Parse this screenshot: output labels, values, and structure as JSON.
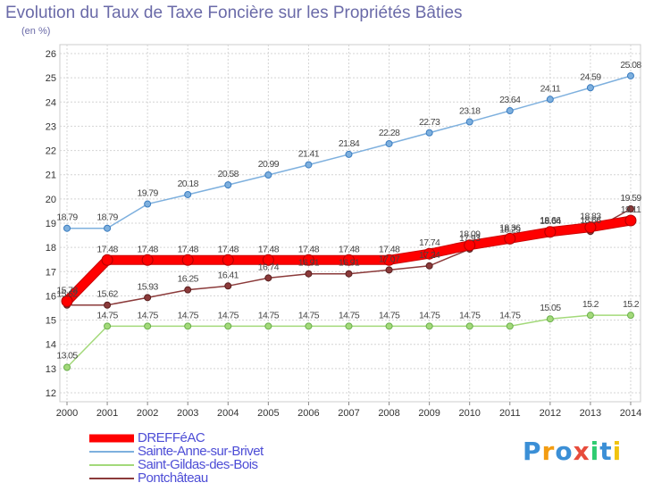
{
  "title": "Evolution du Taux de Taxe Foncière sur les Propriétés Bâties",
  "subtitle": "(en %)",
  "logo": {
    "text": "Proxiti",
    "colors": [
      "#3b8fd6",
      "#f39c12",
      "#3b8fd6",
      "#e74c3c",
      "#2ecc71",
      "#3b8fd6",
      "#f1c40f"
    ]
  },
  "chart_data": {
    "type": "line",
    "categories": [
      "2000",
      "2001",
      "2002",
      "2003",
      "2004",
      "2005",
      "2006",
      "2007",
      "2008",
      "2009",
      "2010",
      "2011",
      "2012",
      "2013",
      "2014"
    ],
    "ylim": [
      12,
      26
    ],
    "yticks": [
      12,
      13,
      14,
      15,
      16,
      17,
      18,
      19,
      20,
      21,
      22,
      23,
      24,
      25,
      26
    ],
    "grid": true,
    "legend_position": "bottom-left",
    "series": [
      {
        "name": "DREFFéAC",
        "color": "#ff0000",
        "values": [
          15.78,
          17.48,
          17.48,
          17.48,
          17.48,
          17.48,
          17.48,
          17.48,
          17.48,
          17.74,
          18.09,
          18.36,
          18.64,
          18.83,
          19.11
        ],
        "labels": [
          "15.78",
          "17.48",
          "17.48",
          "17.48",
          "17.48",
          "17.48",
          "17.48",
          "17.48",
          "17.48",
          "17.74",
          "18.09",
          "18.36",
          "18.64",
          "18.83",
          "19.11"
        ]
      },
      {
        "name": "Sainte-Anne-sur-Brivet",
        "color": "#7eb0de",
        "values": [
          18.79,
          18.79,
          19.79,
          20.18,
          20.58,
          20.99,
          21.41,
          21.84,
          22.28,
          22.73,
          23.18,
          23.64,
          24.11,
          24.59,
          25.08
        ],
        "labels": [
          "18.79",
          "18.79",
          "19.79",
          "20.18",
          "20.58",
          "20.99",
          "21.41",
          "21.84",
          "22.28",
          "22.73",
          "23.18",
          "23.64",
          "24.11",
          "24.59",
          "25.08"
        ]
      },
      {
        "name": "Saint-Gildas-des-Bois",
        "color": "#a3d97a",
        "values": [
          13.05,
          14.75,
          14.75,
          14.75,
          14.75,
          14.75,
          14.75,
          14.75,
          14.75,
          14.75,
          14.75,
          14.75,
          15.05,
          15.2,
          15.2
        ],
        "labels": [
          "13.05",
          "14.75",
          "14.75",
          "14.75",
          "14.75",
          "14.75",
          "14.75",
          "14.75",
          "14.75",
          "14.75",
          "14.75",
          "14.75",
          "15.05",
          "15.2",
          "15.2"
        ]
      },
      {
        "name": "Pontchâteau",
        "color": "#8b3a3a",
        "values": [
          15.62,
          15.62,
          15.93,
          16.25,
          16.41,
          16.74,
          16.91,
          16.91,
          17.07,
          17.24,
          17.93,
          18.29,
          18.66,
          18.66,
          19.59
        ],
        "labels": [
          "15.62",
          "15.62",
          "15.93",
          "16.25",
          "16.41",
          "16.74",
          "16.91",
          "16.91",
          "17.07",
          "17.24",
          "17.93",
          "18.29",
          "18.66",
          "18.66",
          "19.59"
        ]
      }
    ]
  }
}
